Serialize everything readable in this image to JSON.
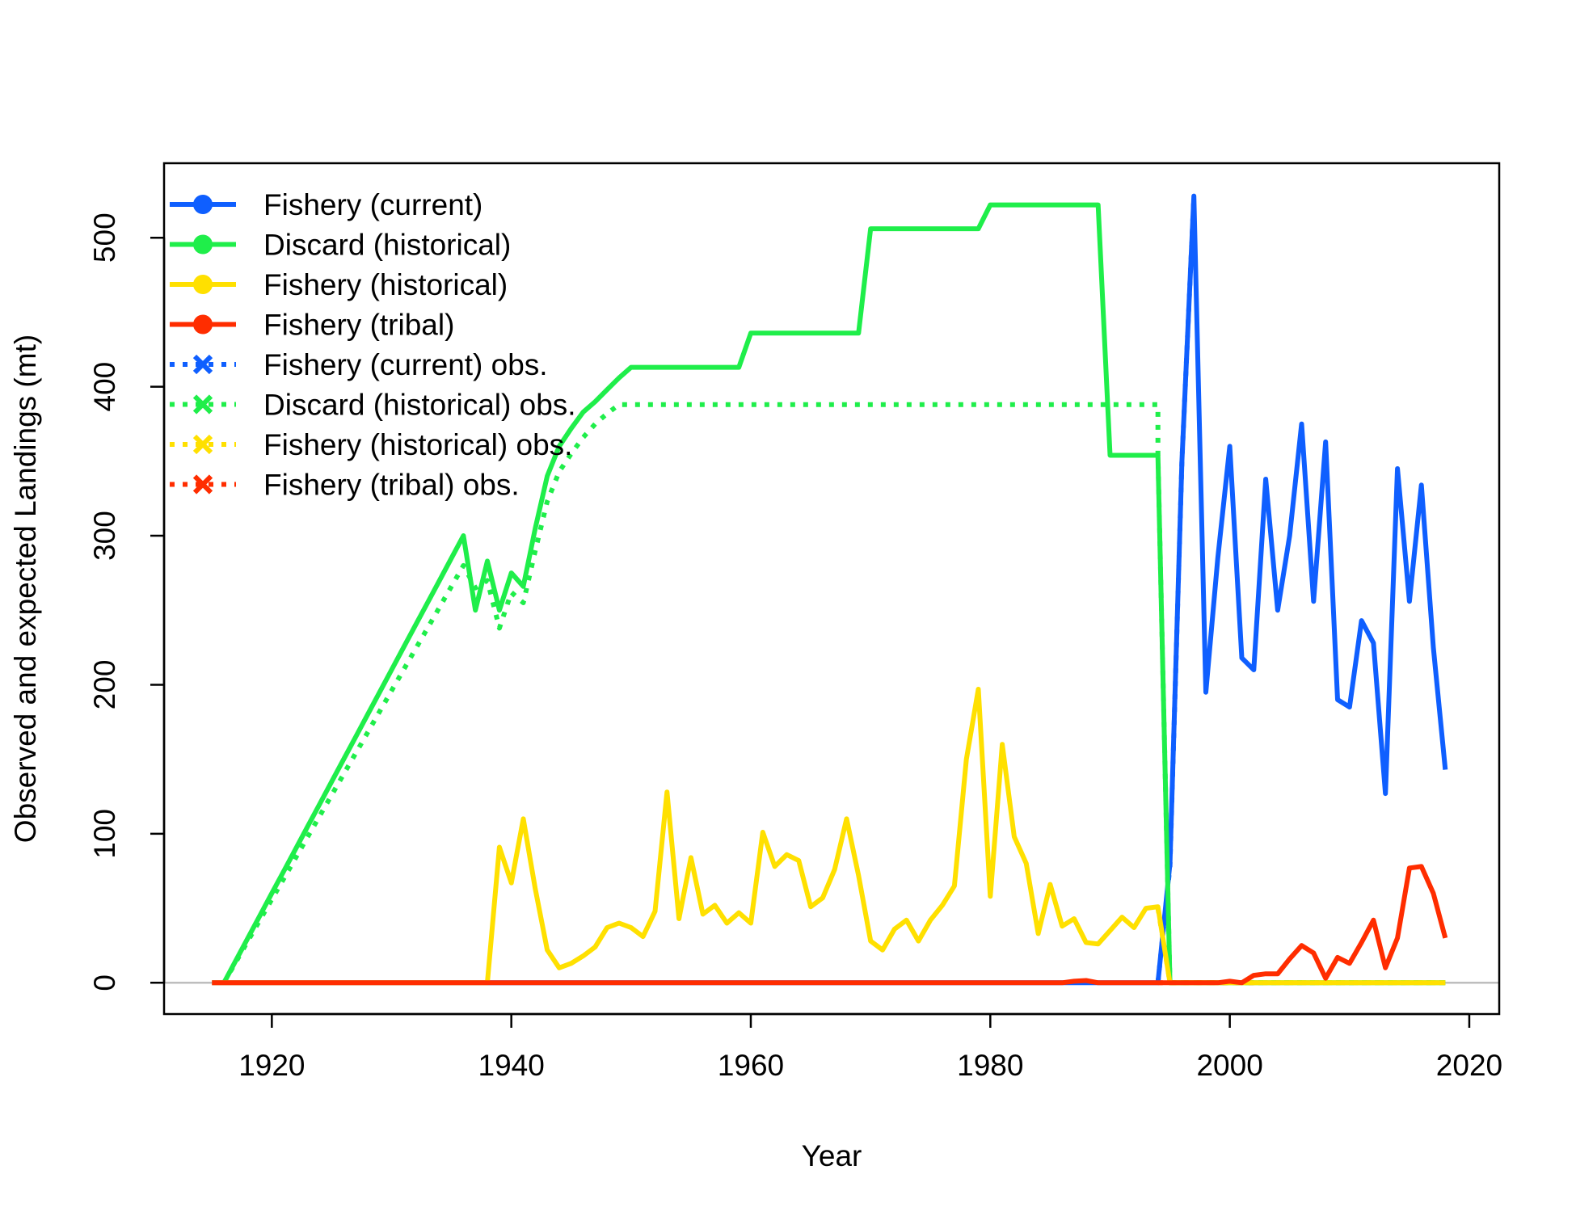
{
  "chart_data": {
    "type": "line",
    "title": "",
    "xlabel": "Year",
    "ylabel": "Observed and expected Landings (mt)",
    "xlim": [
      1911,
      2022.5
    ],
    "ylim": [
      -21,
      550
    ],
    "xticks": [
      1920,
      1940,
      1960,
      1980,
      2000,
      2020
    ],
    "yticks": [
      0,
      100,
      200,
      300,
      400,
      500
    ],
    "zero_line": true,
    "legend_position": "top-left",
    "series": [
      {
        "name": "Fishery (current)",
        "color": "#0F5FFF",
        "style": "solid",
        "points": [
          [
            1915,
            0
          ],
          [
            1993,
            0
          ],
          [
            1994,
            0
          ],
          [
            1995,
            80
          ],
          [
            1996,
            350
          ],
          [
            1997,
            528
          ],
          [
            1998,
            195
          ],
          [
            1999,
            285
          ],
          [
            2000,
            360
          ],
          [
            2001,
            218
          ],
          [
            2002,
            210
          ],
          [
            2003,
            338
          ],
          [
            2004,
            250
          ],
          [
            2005,
            300
          ],
          [
            2006,
            375
          ],
          [
            2007,
            256
          ],
          [
            2008,
            363
          ],
          [
            2009,
            190
          ],
          [
            2010,
            185
          ],
          [
            2011,
            243
          ],
          [
            2012,
            228
          ],
          [
            2013,
            127
          ],
          [
            2014,
            345
          ],
          [
            2015,
            256
          ],
          [
            2016,
            334
          ],
          [
            2017,
            225
          ],
          [
            2018,
            143
          ]
        ]
      },
      {
        "name": "Discard (historical)",
        "color": "#1FEE4A",
        "style": "solid",
        "points": [
          [
            1916,
            0
          ],
          [
            1917,
            15
          ],
          [
            1918,
            30
          ],
          [
            1919,
            45
          ],
          [
            1920,
            60
          ],
          [
            1921,
            75
          ],
          [
            1922,
            90
          ],
          [
            1923,
            105
          ],
          [
            1924,
            120
          ],
          [
            1925,
            135
          ],
          [
            1926,
            150
          ],
          [
            1927,
            165
          ],
          [
            1928,
            180
          ],
          [
            1929,
            195
          ],
          [
            1930,
            210
          ],
          [
            1931,
            225
          ],
          [
            1932,
            240
          ],
          [
            1933,
            255
          ],
          [
            1934,
            270
          ],
          [
            1935,
            285
          ],
          [
            1936,
            300
          ],
          [
            1937,
            250
          ],
          [
            1938,
            283
          ],
          [
            1939,
            250
          ],
          [
            1940,
            275
          ],
          [
            1941,
            266
          ],
          [
            1942,
            305
          ],
          [
            1943,
            340
          ],
          [
            1944,
            360
          ],
          [
            1945,
            372
          ],
          [
            1946,
            383
          ],
          [
            1947,
            390
          ],
          [
            1948,
            398
          ],
          [
            1949,
            406
          ],
          [
            1950,
            413
          ],
          [
            1959,
            413
          ],
          [
            1960,
            436
          ],
          [
            1969,
            436
          ],
          [
            1970,
            506
          ],
          [
            1979,
            506
          ],
          [
            1980,
            522
          ],
          [
            1989,
            522
          ],
          [
            1990,
            354
          ],
          [
            1994,
            354
          ],
          [
            1995,
            0
          ],
          [
            2018,
            0
          ]
        ]
      },
      {
        "name": "Fishery (historical)",
        "color": "#FFE000",
        "style": "solid",
        "points": [
          [
            1915,
            0
          ],
          [
            1938,
            0
          ],
          [
            1939,
            91
          ],
          [
            1940,
            67
          ],
          [
            1941,
            110
          ],
          [
            1942,
            63
          ],
          [
            1943,
            22
          ],
          [
            1944,
            10
          ],
          [
            1945,
            13
          ],
          [
            1946,
            18
          ],
          [
            1947,
            24
          ],
          [
            1948,
            37
          ],
          [
            1949,
            40
          ],
          [
            1950,
            37
          ],
          [
            1951,
            31
          ],
          [
            1952,
            48
          ],
          [
            1953,
            128
          ],
          [
            1954,
            43
          ],
          [
            1955,
            84
          ],
          [
            1956,
            46
          ],
          [
            1957,
            52
          ],
          [
            1958,
            40
          ],
          [
            1959,
            47
          ],
          [
            1960,
            40
          ],
          [
            1961,
            101
          ],
          [
            1962,
            78
          ],
          [
            1963,
            86
          ],
          [
            1964,
            82
          ],
          [
            1965,
            51
          ],
          [
            1966,
            57
          ],
          [
            1967,
            76
          ],
          [
            1968,
            110
          ],
          [
            1969,
            72
          ],
          [
            1970,
            28
          ],
          [
            1971,
            22
          ],
          [
            1972,
            36
          ],
          [
            1973,
            42
          ],
          [
            1974,
            28
          ],
          [
            1975,
            42
          ],
          [
            1976,
            52
          ],
          [
            1977,
            65
          ],
          [
            1978,
            150
          ],
          [
            1979,
            197
          ],
          [
            1980,
            58
          ],
          [
            1981,
            160
          ],
          [
            1982,
            98
          ],
          [
            1983,
            80
          ],
          [
            1984,
            33
          ],
          [
            1985,
            66
          ],
          [
            1986,
            38
          ],
          [
            1987,
            43
          ],
          [
            1988,
            27
          ],
          [
            1989,
            26
          ],
          [
            1990,
            35
          ],
          [
            1991,
            44
          ],
          [
            1992,
            37
          ],
          [
            1993,
            50
          ],
          [
            1994,
            51
          ],
          [
            1995,
            0
          ],
          [
            2018,
            0
          ]
        ]
      },
      {
        "name": "Fishery (tribal)",
        "color": "#FF2D00",
        "style": "solid",
        "points": [
          [
            1915,
            0
          ],
          [
            1986,
            0
          ],
          [
            1987,
            1
          ],
          [
            1988,
            1.5
          ],
          [
            1989,
            0
          ],
          [
            1999,
            0
          ],
          [
            2000,
            1
          ],
          [
            2001,
            0
          ],
          [
            2002,
            5
          ],
          [
            2003,
            6
          ],
          [
            2004,
            6
          ],
          [
            2005,
            16
          ],
          [
            2006,
            25
          ],
          [
            2007,
            20
          ],
          [
            2008,
            3
          ],
          [
            2009,
            17
          ],
          [
            2010,
            13
          ],
          [
            2011,
            27
          ],
          [
            2012,
            42
          ],
          [
            2013,
            10
          ],
          [
            2014,
            30
          ],
          [
            2015,
            77
          ],
          [
            2016,
            78
          ],
          [
            2017,
            60
          ],
          [
            2018,
            30
          ]
        ]
      },
      {
        "name": "Fishery (current) obs.",
        "color": "#0F5FFF",
        "style": "dotted",
        "points": [
          [
            1994,
            0
          ],
          [
            1995,
            78
          ],
          [
            1996,
            350
          ],
          [
            1997,
            528
          ]
        ]
      },
      {
        "name": "Discard (historical) obs.",
        "color": "#1FEE4A",
        "style": "dotted",
        "points": [
          [
            1916,
            0
          ],
          [
            1917,
            14
          ],
          [
            1918,
            28
          ],
          [
            1919,
            42
          ],
          [
            1920,
            56
          ],
          [
            1921,
            70
          ],
          [
            1922,
            84
          ],
          [
            1923,
            98
          ],
          [
            1924,
            112
          ],
          [
            1925,
            126
          ],
          [
            1926,
            140
          ],
          [
            1927,
            154
          ],
          [
            1928,
            168
          ],
          [
            1929,
            182
          ],
          [
            1930,
            196
          ],
          [
            1931,
            210
          ],
          [
            1932,
            224
          ],
          [
            1933,
            238
          ],
          [
            1934,
            252
          ],
          [
            1935,
            266
          ],
          [
            1936,
            280
          ],
          [
            1937,
            265
          ],
          [
            1938,
            270
          ],
          [
            1939,
            238
          ],
          [
            1940,
            262
          ],
          [
            1941,
            255
          ],
          [
            1942,
            290
          ],
          [
            1943,
            323
          ],
          [
            1944,
            343
          ],
          [
            1945,
            355
          ],
          [
            1946,
            366
          ],
          [
            1947,
            375
          ],
          [
            1948,
            382
          ],
          [
            1949,
            388
          ],
          [
            1994,
            388
          ],
          [
            1994,
            355
          ],
          [
            1995,
            0
          ],
          [
            2018,
            0
          ]
        ]
      },
      {
        "name": "Fishery (historical) obs.",
        "color": "#FFE000",
        "style": "dotted",
        "points": [
          [
            1994,
            50
          ],
          [
            1995,
            0
          ],
          [
            2018,
            0
          ]
        ]
      },
      {
        "name": "Fishery (tribal) obs.",
        "color": "#FF2D00",
        "style": "dotted",
        "points": [
          [
            1994,
            0
          ],
          [
            2002,
            0
          ]
        ]
      }
    ]
  }
}
